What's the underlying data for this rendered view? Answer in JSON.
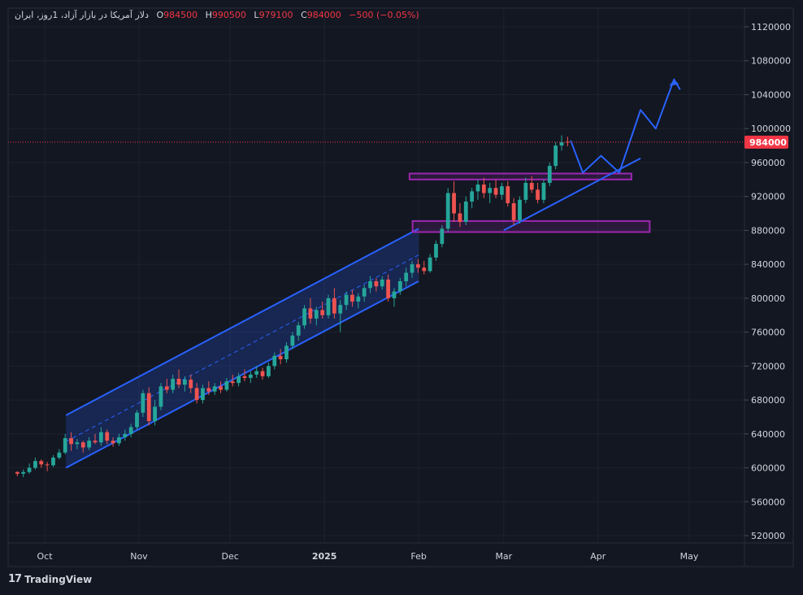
{
  "header": {
    "symbol": "دلار آمریکا در بازار آزاد، 1روز، ایران",
    "open_label": "O",
    "open": "984500",
    "high_label": "H",
    "high": "990500",
    "low_label": "L",
    "low": "979100",
    "close_label": "C",
    "close": "984000",
    "change": "−500 (−0.05%)"
  },
  "footer": {
    "logo_mark": "17",
    "brand": "TradingView"
  },
  "colors": {
    "up": "#26a69a",
    "down": "#ef5350",
    "channel": "#2962ff",
    "zone": "#9c27b0",
    "price_line": "#f23645"
  },
  "chart_data": {
    "type": "candlestick",
    "start_date": "2024-09-22",
    "ylim": [
      500000,
      1140000
    ],
    "yticks": [
      520000,
      560000,
      600000,
      640000,
      680000,
      720000,
      760000,
      800000,
      840000,
      880000,
      920000,
      960000,
      1000000,
      1040000,
      1080000,
      1120000
    ],
    "xtick_labels": [
      "Oct",
      "Nov",
      "Dec",
      "2025",
      "Feb",
      "Mar",
      "Apr",
      "May"
    ],
    "last_price_label": "984000",
    "ohlc": [
      [
        595000,
        596000,
        590000,
        593000
      ],
      [
        593000,
        598000,
        589000,
        595000
      ],
      [
        595000,
        605000,
        593000,
        600000
      ],
      [
        600000,
        612000,
        598000,
        608000
      ],
      [
        608000,
        610000,
        600000,
        604000
      ],
      [
        604000,
        607000,
        596000,
        603000
      ],
      [
        603000,
        615000,
        601000,
        612000
      ],
      [
        612000,
        622000,
        610000,
        618000
      ],
      [
        618000,
        640000,
        616000,
        635000
      ],
      [
        635000,
        642000,
        620000,
        628000
      ],
      [
        628000,
        634000,
        622000,
        630000
      ],
      [
        630000,
        632000,
        618000,
        624000
      ],
      [
        624000,
        636000,
        621000,
        632000
      ],
      [
        632000,
        640000,
        628000,
        630000
      ],
      [
        630000,
        648000,
        626000,
        642000
      ],
      [
        642000,
        645000,
        628000,
        632000
      ],
      [
        632000,
        636000,
        625000,
        629000
      ],
      [
        629000,
        640000,
        626000,
        636000
      ],
      [
        636000,
        645000,
        632000,
        640000
      ],
      [
        640000,
        652000,
        636000,
        648000
      ],
      [
        648000,
        668000,
        645000,
        665000
      ],
      [
        665000,
        692000,
        660000,
        688000
      ],
      [
        688000,
        695000,
        650000,
        655000
      ],
      [
        655000,
        680000,
        650000,
        672000
      ],
      [
        672000,
        700000,
        668000,
        696000
      ],
      [
        696000,
        705000,
        688000,
        692000
      ],
      [
        692000,
        710000,
        688000,
        705000
      ],
      [
        705000,
        716000,
        694000,
        698000
      ],
      [
        698000,
        708000,
        690000,
        704000
      ],
      [
        704000,
        710000,
        688000,
        694000
      ],
      [
        694000,
        700000,
        676000,
        680000
      ],
      [
        680000,
        698000,
        676000,
        694000
      ],
      [
        694000,
        702000,
        686000,
        690000
      ],
      [
        690000,
        700000,
        686000,
        696000
      ],
      [
        696000,
        702000,
        688000,
        692000
      ],
      [
        692000,
        706000,
        690000,
        702000
      ],
      [
        702000,
        710000,
        696000,
        700000
      ],
      [
        700000,
        712000,
        696000,
        708000
      ],
      [
        708000,
        716000,
        702000,
        706000
      ],
      [
        706000,
        714000,
        700000,
        710000
      ],
      [
        710000,
        720000,
        706000,
        714000
      ],
      [
        714000,
        718000,
        704000,
        708000
      ],
      [
        708000,
        724000,
        706000,
        720000
      ],
      [
        720000,
        736000,
        716000,
        732000
      ],
      [
        732000,
        740000,
        722000,
        728000
      ],
      [
        728000,
        748000,
        724000,
        744000
      ],
      [
        744000,
        760000,
        740000,
        756000
      ],
      [
        756000,
        772000,
        750000,
        768000
      ],
      [
        768000,
        792000,
        764000,
        788000
      ],
      [
        788000,
        800000,
        770000,
        776000
      ],
      [
        776000,
        790000,
        768000,
        786000
      ],
      [
        786000,
        796000,
        776000,
        780000
      ],
      [
        780000,
        804000,
        776000,
        800000
      ],
      [
        800000,
        812000,
        776000,
        782000
      ],
      [
        782000,
        798000,
        760000,
        792000
      ],
      [
        792000,
        808000,
        786000,
        804000
      ],
      [
        804000,
        810000,
        790000,
        796000
      ],
      [
        796000,
        806000,
        788000,
        802000
      ],
      [
        802000,
        816000,
        796000,
        812000
      ],
      [
        812000,
        826000,
        806000,
        820000
      ],
      [
        820000,
        824000,
        808000,
        814000
      ],
      [
        814000,
        826000,
        810000,
        822000
      ],
      [
        822000,
        828000,
        796000,
        800000
      ],
      [
        800000,
        812000,
        790000,
        808000
      ],
      [
        808000,
        824000,
        804000,
        820000
      ],
      [
        820000,
        836000,
        814000,
        830000
      ],
      [
        830000,
        844000,
        824000,
        840000
      ],
      [
        840000,
        846000,
        830000,
        836000
      ],
      [
        836000,
        844000,
        828000,
        832000
      ],
      [
        832000,
        852000,
        830000,
        848000
      ],
      [
        848000,
        868000,
        844000,
        864000
      ],
      [
        864000,
        886000,
        860000,
        882000
      ],
      [
        882000,
        930000,
        878000,
        924000
      ],
      [
        924000,
        938000,
        890000,
        900000
      ],
      [
        900000,
        912000,
        884000,
        890000
      ],
      [
        890000,
        920000,
        886000,
        914000
      ],
      [
        914000,
        930000,
        906000,
        926000
      ],
      [
        926000,
        940000,
        916000,
        934000
      ],
      [
        934000,
        942000,
        918000,
        924000
      ],
      [
        924000,
        936000,
        912000,
        930000
      ],
      [
        930000,
        940000,
        918000,
        922000
      ],
      [
        922000,
        936000,
        916000,
        932000
      ],
      [
        932000,
        938000,
        908000,
        912000
      ],
      [
        912000,
        918000,
        886000,
        892000
      ],
      [
        892000,
        920000,
        888000,
        916000
      ],
      [
        916000,
        942000,
        912000,
        936000
      ],
      [
        936000,
        944000,
        924000,
        928000
      ],
      [
        928000,
        936000,
        912000,
        916000
      ],
      [
        916000,
        940000,
        912000,
        936000
      ],
      [
        936000,
        960000,
        932000,
        956000
      ],
      [
        956000,
        984000,
        952000,
        980000
      ],
      [
        980000,
        992000,
        974000,
        984000
      ],
      [
        984500,
        990500,
        979100,
        984000
      ]
    ],
    "channel": {
      "upper": [
        [
          "2024-10-08",
          662000
        ],
        [
          "2025-02-01",
          882000
        ]
      ],
      "lower": [
        [
          "2024-10-08",
          600000
        ],
        [
          "2025-02-01",
          820000
        ]
      ],
      "mid": [
        [
          "2024-10-08",
          631000
        ],
        [
          "2025-02-01",
          851000
        ]
      ]
    },
    "trendline": [
      [
        "2025-03-01",
        880000
      ],
      [
        "2025-04-15",
        965000
      ]
    ],
    "zones": [
      {
        "x0": "2025-01-29",
        "x1": "2025-04-12",
        "y0": 947000,
        "y1": 940000
      },
      {
        "x0": "2025-01-30",
        "x1": "2025-04-18",
        "y0": 891000,
        "y1": 878000
      }
    ],
    "projection": [
      [
        "2025-03-23",
        986000
      ],
      [
        "2025-03-27",
        948000
      ],
      [
        "2025-04-02",
        968000
      ],
      [
        "2025-04-08",
        948000
      ],
      [
        "2025-04-15",
        1022000
      ],
      [
        "2025-04-20",
        1000000
      ],
      [
        "2025-04-26",
        1058000
      ],
      [
        "2025-04-28",
        1046000
      ]
    ]
  }
}
